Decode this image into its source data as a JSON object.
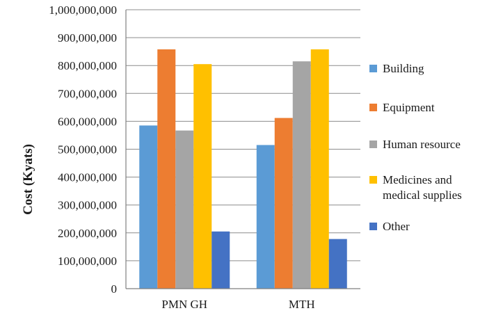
{
  "chart_data": {
    "type": "bar",
    "title": "",
    "xlabel": "",
    "ylabel": "Cost (Kyats)",
    "ylim": [
      0,
      1000000000
    ],
    "yticks": [
      0,
      100000000,
      200000000,
      300000000,
      400000000,
      500000000,
      600000000,
      700000000,
      800000000,
      900000000,
      1000000000
    ],
    "ytick_labels": [
      "0",
      "100,000,000",
      "200,000,000",
      "300,000,000",
      "400,000,000",
      "500,000,000",
      "600,000,000",
      "700,000,000",
      "800,000,000",
      "900,000,000",
      "1,000,000,000"
    ],
    "categories": [
      "PMN GH",
      "MTH"
    ],
    "grid": true,
    "legend_position": "right",
    "series": [
      {
        "name": "Building",
        "color": "#5b9bd5",
        "values": [
          585000000,
          515000000
        ]
      },
      {
        "name": "Equipment",
        "color": "#ed7d31",
        "values": [
          858000000,
          612000000
        ]
      },
      {
        "name": "Human resource",
        "color": "#a5a5a5",
        "values": [
          567000000,
          815000000
        ]
      },
      {
        "name": "Medicines and medical supplies",
        "legend_lines": [
          "Medicines and",
          "medical supplies"
        ],
        "color": "#ffc000",
        "values": [
          805000000,
          858000000
        ]
      },
      {
        "name": "Other",
        "color": "#4472c4",
        "values": [
          205000000,
          178000000
        ]
      }
    ]
  }
}
